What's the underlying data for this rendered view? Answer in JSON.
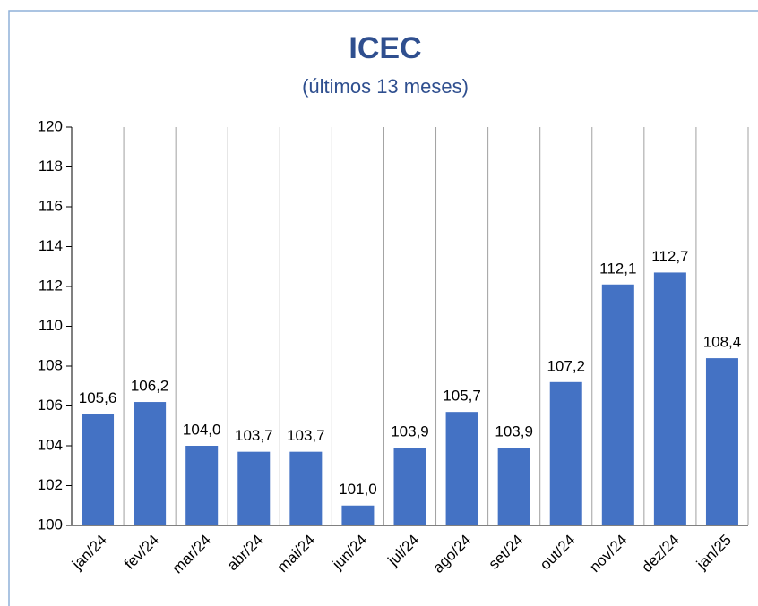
{
  "chart_data": {
    "type": "bar",
    "title": "ICEC",
    "subtitle": "(últimos 13 meses)",
    "categories": [
      "jan/24",
      "fev/24",
      "mar/24",
      "abr/24",
      "mai/24",
      "jun/24",
      "jul/24",
      "ago/24",
      "set/24",
      "out/24",
      "nov/24",
      "dez/24",
      "jan/25"
    ],
    "values": [
      105.6,
      106.2,
      104.0,
      103.7,
      103.7,
      101.0,
      103.9,
      105.7,
      103.9,
      107.2,
      112.1,
      112.7,
      108.4
    ],
    "value_labels": [
      "105,6",
      "106,2",
      "104,0",
      "103,7",
      "103,7",
      "101,0",
      "103,9",
      "105,7",
      "103,9",
      "107,2",
      "112,1",
      "112,7",
      "108,4"
    ],
    "color": "#4472c4",
    "ylim": [
      100,
      120
    ],
    "yticks": [
      100,
      102,
      104,
      106,
      108,
      110,
      112,
      114,
      116,
      118,
      120
    ],
    "grid": false
  }
}
